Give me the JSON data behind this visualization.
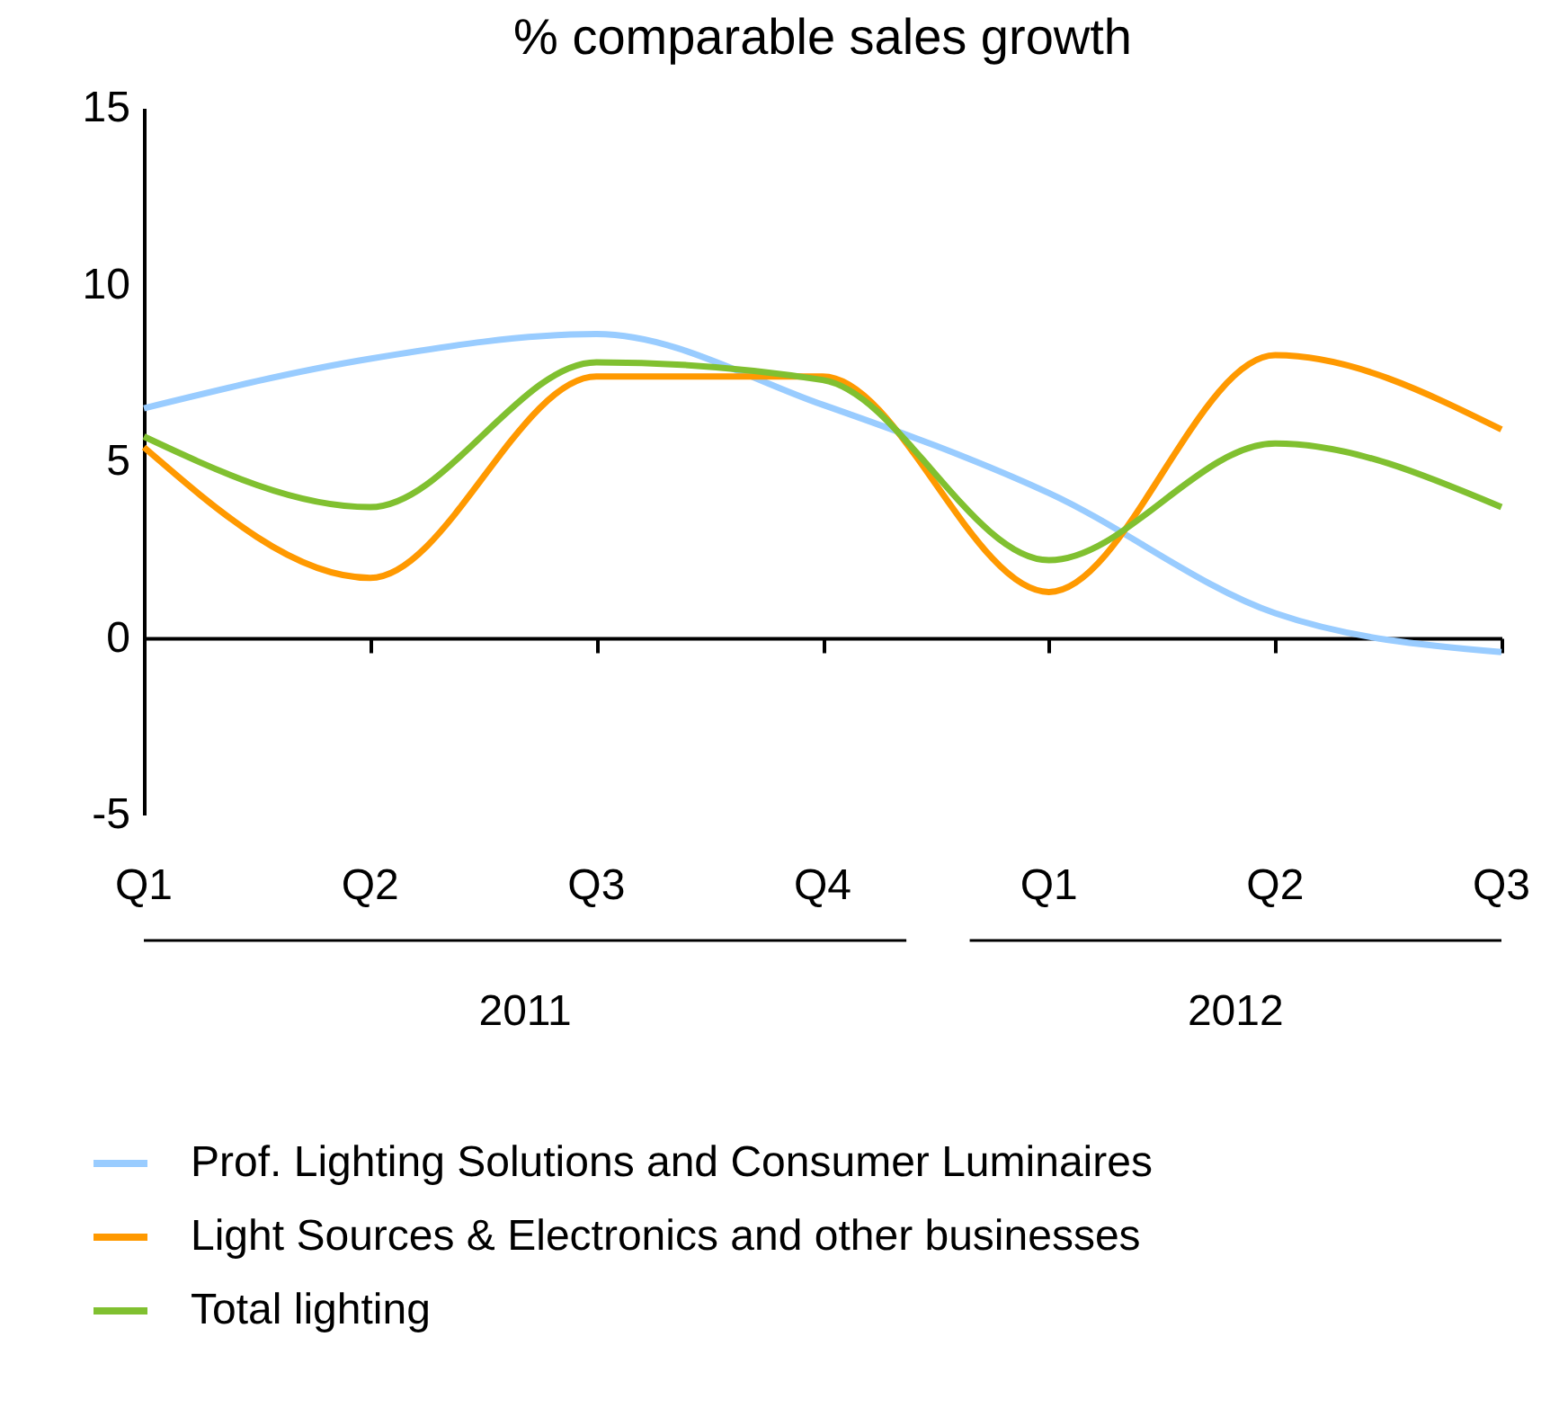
{
  "chart_data": {
    "type": "line",
    "title": "% comparable sales growth",
    "categories": [
      "Q1",
      "Q2",
      "Q3",
      "Q4",
      "Q1",
      "Q2",
      "Q3"
    ],
    "series": [
      {
        "name": "Prof. Lighting Solutions and Consumer Luminaires",
        "color": "#99ccff",
        "values": [
          6.5,
          7.9,
          8.6,
          6.6,
          4.1,
          0.7,
          -0.4
        ]
      },
      {
        "name": "Light Sources & Electronics and other businesses",
        "color": "#ff9900",
        "values": [
          5.4,
          1.7,
          7.4,
          7.4,
          1.3,
          8.0,
          5.9
        ]
      },
      {
        "name": "Total lighting",
        "color": "#80c030",
        "values": [
          5.7,
          3.7,
          7.8,
          7.3,
          2.2,
          5.5,
          3.7
        ]
      }
    ],
    "annotations": [
      "2011",
      "2012"
    ],
    "ylim": [
      -5,
      15
    ],
    "yticks": [
      -5,
      0,
      5,
      10,
      15
    ],
    "legend": "bottom left",
    "marker": "none",
    "line_style": "solid"
  }
}
